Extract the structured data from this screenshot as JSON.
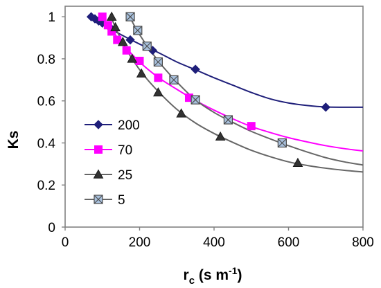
{
  "chart_data": {
    "type": "scatter",
    "xlabel": "r",
    "xlabel_sub": "c",
    "xlabel_unit": " (s m",
    "xlabel_unit_sup": "-1",
    "xlabel_unit_close": ")",
    "ylabel": "Ks",
    "xlim": [
      0,
      800
    ],
    "ylim": [
      0,
      1.05
    ],
    "x_ticks": [
      0,
      200,
      400,
      600,
      800
    ],
    "y_ticks": [
      0,
      0.2,
      0.4,
      0.6,
      0.8,
      1
    ],
    "x_tick_labels": [
      "0",
      "200",
      "400",
      "600",
      "800"
    ],
    "y_tick_labels": [
      "0",
      "0.2",
      "0.4",
      "0.6",
      "0.8",
      "1"
    ],
    "grid": false,
    "legend_position": "left-center",
    "series": [
      {
        "name": "200",
        "color": "#1F1F7A",
        "marker": "diamond",
        "points": [
          [
            70,
            1.0
          ],
          [
            80,
            0.99
          ],
          [
            90,
            0.98
          ],
          [
            100,
            0.97
          ],
          [
            120,
            0.95
          ],
          [
            175,
            0.89
          ],
          [
            235,
            0.84
          ],
          [
            350,
            0.75
          ],
          [
            700,
            0.57
          ]
        ],
        "curve": [
          [
            70,
            1.0
          ],
          [
            100,
            0.965
          ],
          [
            150,
            0.915
          ],
          [
            200,
            0.87
          ],
          [
            250,
            0.83
          ],
          [
            300,
            0.785
          ],
          [
            350,
            0.748
          ],
          [
            400,
            0.71
          ],
          [
            450,
            0.675
          ],
          [
            500,
            0.64
          ],
          [
            550,
            0.61
          ],
          [
            600,
            0.59
          ],
          [
            650,
            0.578
          ],
          [
            700,
            0.571
          ],
          [
            750,
            0.57
          ],
          [
            800,
            0.57
          ]
        ]
      },
      {
        "name": "70",
        "color": "#FF00FF",
        "marker": "square",
        "points": [
          [
            100,
            1.0
          ],
          [
            115,
            0.96
          ],
          [
            125,
            0.93
          ],
          [
            140,
            0.89
          ],
          [
            165,
            0.84
          ],
          [
            200,
            0.79
          ],
          [
            250,
            0.71
          ],
          [
            333,
            0.615
          ],
          [
            500,
            0.48
          ]
        ],
        "curve": [
          [
            95,
            1.005
          ],
          [
            120,
            0.95
          ],
          [
            150,
            0.88
          ],
          [
            200,
            0.785
          ],
          [
            250,
            0.712
          ],
          [
            300,
            0.655
          ],
          [
            350,
            0.602
          ],
          [
            400,
            0.556
          ],
          [
            450,
            0.515
          ],
          [
            500,
            0.478
          ],
          [
            550,
            0.45
          ],
          [
            600,
            0.425
          ],
          [
            650,
            0.405
          ],
          [
            700,
            0.387
          ],
          [
            750,
            0.373
          ],
          [
            800,
            0.362
          ]
        ]
      },
      {
        "name": "25",
        "color": "#666666",
        "marker": "triangle",
        "points": [
          [
            125,
            1.0
          ],
          [
            135,
            0.95
          ],
          [
            155,
            0.88
          ],
          [
            180,
            0.8
          ],
          [
            205,
            0.73
          ],
          [
            250,
            0.64
          ],
          [
            312,
            0.54
          ],
          [
            417,
            0.43
          ],
          [
            625,
            0.305
          ]
        ],
        "curve": [
          [
            122,
            1.005
          ],
          [
            140,
            0.93
          ],
          [
            160,
            0.86
          ],
          [
            180,
            0.8
          ],
          [
            210,
            0.725
          ],
          [
            250,
            0.645
          ],
          [
            300,
            0.56
          ],
          [
            350,
            0.495
          ],
          [
            400,
            0.445
          ],
          [
            450,
            0.403
          ],
          [
            500,
            0.365
          ],
          [
            550,
            0.335
          ],
          [
            600,
            0.31
          ],
          [
            650,
            0.293
          ],
          [
            700,
            0.28
          ],
          [
            750,
            0.27
          ],
          [
            800,
            0.262
          ]
        ]
      },
      {
        "name": "5",
        "color": "#666666",
        "fill": "#A8C0DC",
        "marker": "square-x",
        "points": [
          [
            175,
            1.0
          ],
          [
            195,
            0.935
          ],
          [
            220,
            0.86
          ],
          [
            250,
            0.785
          ],
          [
            292,
            0.7
          ],
          [
            350,
            0.605
          ],
          [
            438,
            0.51
          ],
          [
            583,
            0.4
          ]
        ],
        "curve": [
          [
            172,
            1.005
          ],
          [
            200,
            0.915
          ],
          [
            250,
            0.79
          ],
          [
            300,
            0.69
          ],
          [
            350,
            0.605
          ],
          [
            400,
            0.545
          ],
          [
            450,
            0.498
          ],
          [
            500,
            0.455
          ],
          [
            550,
            0.42
          ],
          [
            600,
            0.387
          ],
          [
            650,
            0.357
          ],
          [
            700,
            0.33
          ],
          [
            750,
            0.31
          ],
          [
            800,
            0.295
          ]
        ]
      }
    ]
  }
}
